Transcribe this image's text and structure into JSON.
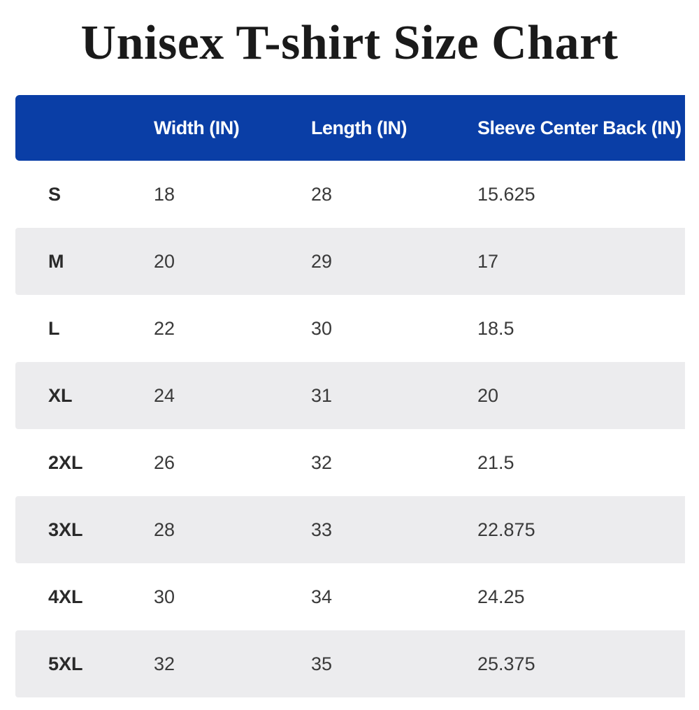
{
  "title": "Unisex T-shirt Size Chart",
  "colors": {
    "header_bg": "#0a3ea6",
    "header_text": "#ffffff",
    "alt_row_bg": "#ececee"
  },
  "table": {
    "headers": [
      "",
      "Width (IN)",
      "Length (IN)",
      "Sleeve Center Back (IN)"
    ],
    "rows": [
      {
        "size": "S",
        "width": "18",
        "length": "28",
        "sleeve": "15.625"
      },
      {
        "size": "M",
        "width": "20",
        "length": "29",
        "sleeve": "17"
      },
      {
        "size": "L",
        "width": "22",
        "length": "30",
        "sleeve": "18.5"
      },
      {
        "size": "XL",
        "width": "24",
        "length": "31",
        "sleeve": "20"
      },
      {
        "size": "2XL",
        "width": "26",
        "length": "32",
        "sleeve": "21.5"
      },
      {
        "size": "3XL",
        "width": "28",
        "length": "33",
        "sleeve": "22.875"
      },
      {
        "size": "4XL",
        "width": "30",
        "length": "34",
        "sleeve": "24.25"
      },
      {
        "size": "5XL",
        "width": "32",
        "length": "35",
        "sleeve": "25.375"
      }
    ]
  }
}
